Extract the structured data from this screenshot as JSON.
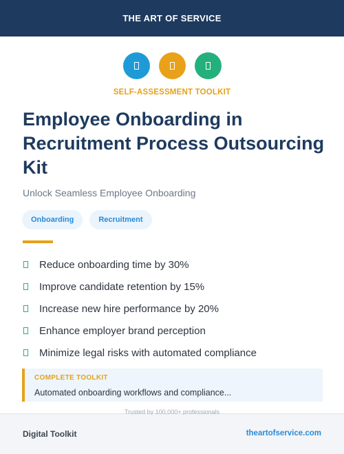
{
  "header": {
    "brand": "THE ART OF SERVICE"
  },
  "icons": [
    {
      "name": "blue-circle-icon",
      "color": "#1e9bd7",
      "glyph": ""
    },
    {
      "name": "orange-circle-icon",
      "color": "#e8a119",
      "glyph": ""
    },
    {
      "name": "green-circle-icon",
      "color": "#23b07d",
      "glyph": ""
    }
  ],
  "kicker": "SELF-ASSESSMENT TOOLKIT",
  "title": "Employee Onboarding in Recruitment Process Outsourcing Kit",
  "subtitle": "Unlock Seamless Employee Onboarding",
  "tags": [
    "Onboarding",
    "Recruitment"
  ],
  "benefits": [
    "Reduce onboarding time by 30%",
    "Improve candidate retention by 15%",
    "Increase new hire performance by 20%",
    "Enhance employer brand perception",
    "Minimize legal risks with automated compliance"
  ],
  "callout": {
    "label": "COMPLETE TOOLKIT",
    "text": "Automated onboarding workflows and compliance..."
  },
  "trusted": "Trusted by 100,000+ professionals",
  "footer": {
    "left": "Digital Toolkit",
    "right": "theartofservice.com"
  },
  "colors": {
    "header_bg": "#1e3a5f",
    "accent_orange": "#e6a117",
    "accent_blue": "#2a8ad6",
    "accent_green": "#23b07d"
  }
}
